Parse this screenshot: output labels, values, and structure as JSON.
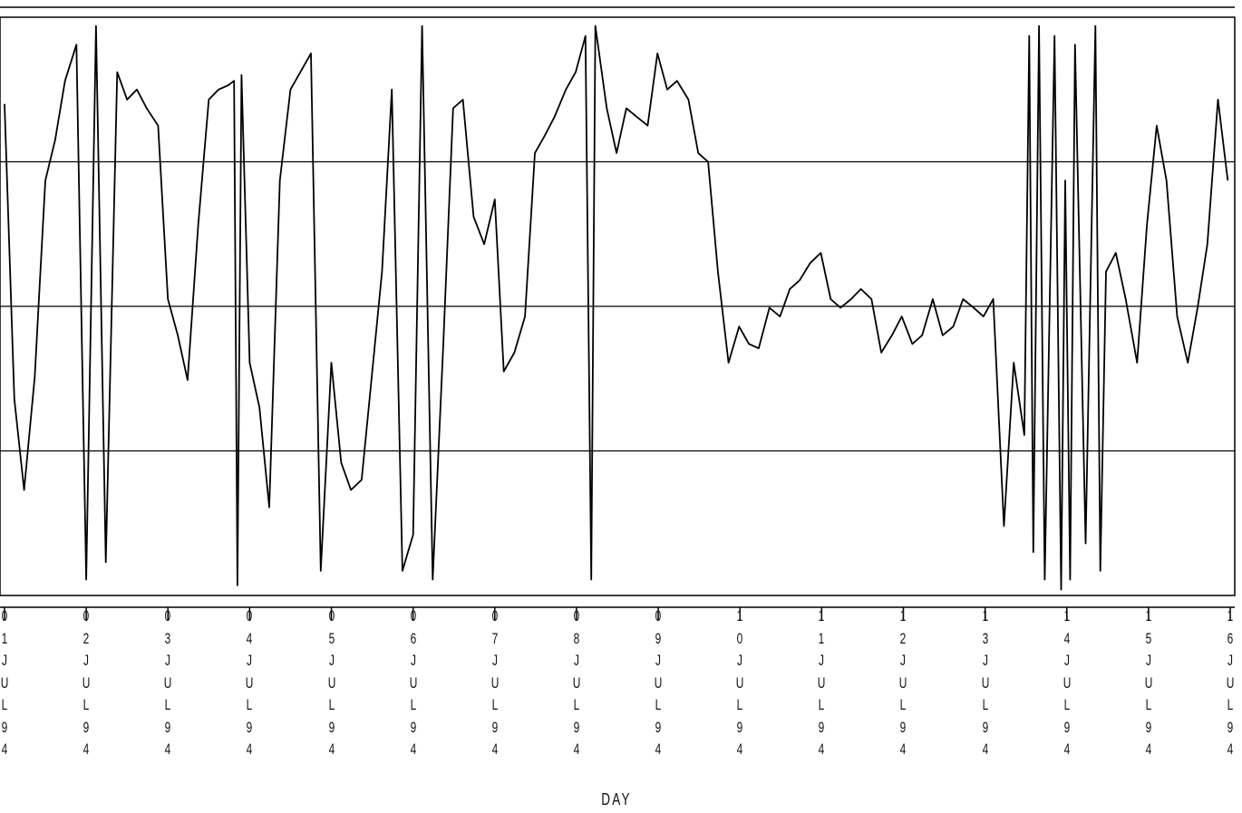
{
  "chart_data": {
    "type": "line",
    "xlabel": "DAY",
    "x": [
      1.0,
      1.12,
      1.24,
      1.37,
      1.5,
      1.62,
      1.74,
      1.88,
      2.0,
      2.12,
      2.24,
      2.38,
      2.5,
      2.62,
      2.74,
      2.88,
      3.0,
      3.12,
      3.24,
      3.37,
      3.5,
      3.62,
      3.74,
      3.81,
      3.85,
      3.9,
      4.0,
      4.12,
      4.24,
      4.37,
      4.5,
      4.62,
      4.75,
      4.87,
      5.0,
      5.12,
      5.24,
      5.37,
      5.49,
      5.62,
      5.74,
      5.87,
      6.0,
      6.11,
      6.24,
      6.37,
      6.49,
      6.61,
      6.74,
      6.87,
      7.0,
      7.11,
      7.24,
      7.37,
      7.49,
      7.61,
      7.73,
      7.87,
      7.99,
      8.11,
      8.18,
      8.23,
      8.37,
      8.49,
      8.61,
      8.74,
      8.87,
      8.99,
      9.11,
      9.23,
      9.37,
      9.49,
      9.61,
      9.73,
      9.86,
      9.99,
      10.11,
      10.23,
      10.36,
      10.49,
      10.61,
      10.73,
      10.86,
      10.99,
      11.11,
      11.23,
      11.36,
      11.48,
      11.61,
      11.73,
      11.86,
      11.98,
      12.11,
      12.23,
      12.36,
      12.48,
      12.61,
      12.73,
      12.86,
      12.98,
      13.1,
      13.23,
      13.35,
      13.48,
      13.54,
      13.59,
      13.66,
      13.73,
      13.85,
      13.93,
      13.98,
      14.04,
      14.1,
      14.23,
      14.35,
      14.41,
      14.48,
      14.6,
      14.72,
      14.86,
      14.98,
      15.1,
      15.22,
      15.35,
      15.48,
      15.6,
      15.72,
      15.85,
      15.97
    ],
    "values": [
      3.4,
      1.36,
      0.73,
      1.51,
      2.87,
      3.15,
      3.56,
      3.81,
      0.11,
      3.94,
      0.23,
      3.62,
      3.43,
      3.5,
      3.37,
      3.25,
      2.05,
      1.8,
      1.49,
      2.56,
      3.43,
      3.5,
      3.53,
      3.56,
      0.07,
      3.6,
      1.61,
      1.3,
      0.61,
      2.87,
      3.5,
      3.62,
      3.75,
      0.17,
      1.61,
      0.92,
      0.73,
      0.8,
      1.49,
      2.24,
      3.5,
      0.17,
      0.42,
      3.94,
      0.11,
      1.74,
      3.37,
      3.43,
      2.62,
      2.43,
      2.74,
      1.55,
      1.68,
      1.93,
      3.06,
      3.18,
      3.31,
      3.5,
      3.62,
      3.87,
      0.11,
      3.94,
      3.37,
      3.06,
      3.37,
      3.31,
      3.25,
      3.75,
      3.5,
      3.56,
      3.43,
      3.06,
      3.0,
      2.24,
      1.61,
      1.86,
      1.74,
      1.71,
      1.99,
      1.93,
      2.12,
      2.18,
      2.3,
      2.37,
      2.05,
      1.99,
      2.05,
      2.12,
      2.05,
      1.68,
      1.8,
      1.93,
      1.74,
      1.8,
      2.05,
      1.8,
      1.86,
      2.05,
      1.99,
      1.93,
      2.05,
      0.48,
      1.61,
      1.11,
      3.87,
      0.3,
      3.94,
      0.11,
      3.87,
      0.04,
      2.87,
      0.11,
      3.81,
      0.36,
      3.94,
      0.17,
      2.24,
      2.37,
      2.05,
      1.61,
      2.56,
      3.25,
      2.87,
      1.93,
      1.61,
      1.99,
      2.43,
      3.43,
      2.87
    ],
    "color": "#000000",
    "xlim": [
      0.945,
      16.055
    ],
    "ylim": [
      0,
      4
    ],
    "yticks": [
      1,
      2,
      3
    ],
    "grid": true,
    "xticks": [
      {
        "value": 1,
        "label": "01JUL94"
      },
      {
        "value": 2,
        "label": "02JUL94"
      },
      {
        "value": 3,
        "label": "03JUL94"
      },
      {
        "value": 4,
        "label": "04JUL94"
      },
      {
        "value": 5,
        "label": "05JUL94"
      },
      {
        "value": 6,
        "label": "06JUL94"
      },
      {
        "value": 7,
        "label": "07JUL94"
      },
      {
        "value": 8,
        "label": "08JUL94"
      },
      {
        "value": 9,
        "label": "09JUL94"
      },
      {
        "value": 10,
        "label": "10JUL94"
      },
      {
        "value": 11,
        "label": "11JUL94"
      },
      {
        "value": 12,
        "label": "12JUL94"
      },
      {
        "value": 13,
        "label": "13JUL94"
      },
      {
        "value": 14,
        "label": "14JUL94"
      },
      {
        "value": 15,
        "label": "15JUL94"
      },
      {
        "value": 16,
        "label": "16JUL94"
      }
    ]
  }
}
